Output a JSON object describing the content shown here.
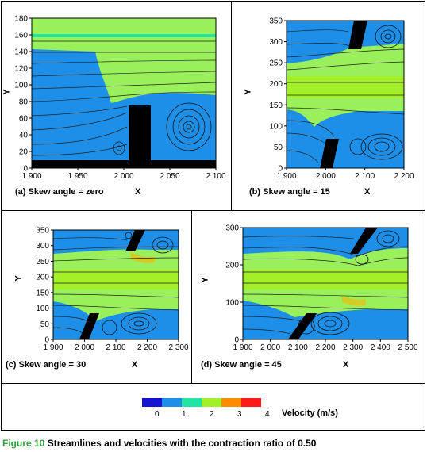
{
  "figure": {
    "number": "Figure 10",
    "caption": "Streamlines and velocities with the contraction ratio of 0.50"
  },
  "legend": {
    "title": "Velocity (m/s)",
    "ticks": [
      "0",
      "1",
      "2",
      "3",
      "4"
    ],
    "colors": [
      "#1414d2",
      "#1e8fe8",
      "#22e5a5",
      "#a4f028",
      "#ff8c00",
      "#ff1a1a"
    ]
  },
  "colors": {
    "blue": "#1e8fe8",
    "green": "#9af05a",
    "teal": "#22e5a5",
    "orange": "#ffb300",
    "black": "#000000"
  },
  "chart_data": [
    {
      "type": "heatmap",
      "caption": "(a) Skew angle = zero",
      "xlabel": "X",
      "ylabel": "Y",
      "xlim": [
        1900,
        2100
      ],
      "ylim": [
        0,
        180
      ],
      "xticks": [
        "1 900",
        "1 950",
        "2 000",
        "2 050",
        "2 100"
      ],
      "yticks": [
        "0",
        "20",
        "40",
        "60",
        "80",
        "100",
        "120",
        "140",
        "160",
        "180"
      ]
    },
    {
      "type": "heatmap",
      "caption": "(b) Skew angle = 15",
      "xlabel": "X",
      "ylabel": "Y",
      "xlim": [
        1900,
        2200
      ],
      "ylim": [
        0,
        350
      ],
      "xticks": [
        "1 900",
        "2 000",
        "2 100",
        "2 200"
      ],
      "yticks": [
        "0",
        "50",
        "100",
        "150",
        "200",
        "250",
        "300",
        "350"
      ]
    },
    {
      "type": "heatmap",
      "caption": "(c) Skew angle = 30",
      "xlabel": "X",
      "ylabel": "Y",
      "xlim": [
        1900,
        2350
      ],
      "ylim": [
        0,
        350
      ],
      "xticks": [
        "1 900",
        "2 000",
        "2 100",
        "2 200",
        "2 300"
      ],
      "yticks": [
        "0",
        "50",
        "100",
        "150",
        "200",
        "250",
        "300",
        "350"
      ]
    },
    {
      "type": "heatmap",
      "caption": "(d) Skew angle = 45",
      "xlabel": "X",
      "ylabel": "Y",
      "xlim": [
        1900,
        2500
      ],
      "ylim": [
        0,
        350
      ],
      "xticks": [
        "1 900",
        "2 000",
        "2 100",
        "2 200",
        "2 300",
        "2 400",
        "2 500"
      ],
      "yticks": [
        "0",
        "100",
        "200",
        "300"
      ]
    }
  ]
}
